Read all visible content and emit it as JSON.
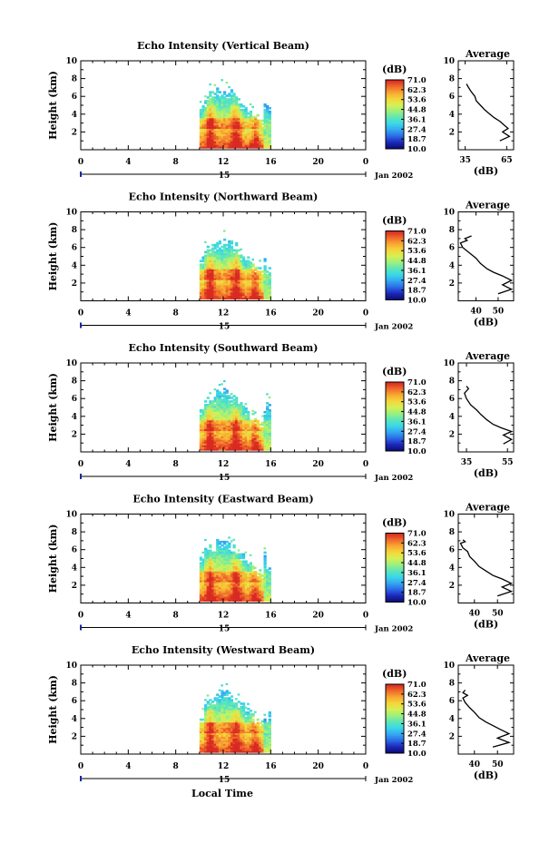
{
  "chart_data": {
    "type": "heatmap",
    "bottom_xlabel": "Local Time",
    "date_label": "Jan 2002",
    "date_tick": "15",
    "time_ticks": [
      0,
      4,
      8,
      12,
      16,
      20,
      0
    ],
    "xlim_hours": [
      0,
      24
    ],
    "height_ticks": [
      2,
      4,
      6,
      8,
      10
    ],
    "ylabel": "Height (km)",
    "ylim_km": [
      0,
      10
    ],
    "colorbar": {
      "unit": "(dB)",
      "labels": [
        "71.0",
        "62.3",
        "53.6",
        "44.8",
        "36.1",
        "27.4",
        "18.7",
        "10.0"
      ],
      "colors": [
        "#0c0e7a",
        "#1f2bbf",
        "#2b6fe8",
        "#35a9f2",
        "#3ad8e8",
        "#5fe6b6",
        "#9cf07c",
        "#d6f055",
        "#f4d63a",
        "#f8a832",
        "#f06a2a",
        "#d82a22"
      ]
    },
    "echo_band": {
      "start_hour": 10.0,
      "end_hour": 15.8,
      "note": "echo present only between ~10 and ~16 LT, tops 5–7 km"
    },
    "panels": [
      {
        "title": "Echo Intensity (Vertical Beam)",
        "profile_title": "Average",
        "profile_xlabel": "(dB)",
        "profile_xlim": [
          30,
          70
        ],
        "profile_xticks": [
          "35",
          "65"
        ],
        "profile_xtick_values": [
          35,
          65
        ],
        "profile": [
          [
            60,
            1.0
          ],
          [
            67,
            1.5
          ],
          [
            62,
            2.0
          ],
          [
            66,
            2.4
          ],
          [
            63,
            2.8
          ],
          [
            60,
            3.2
          ],
          [
            56,
            3.6
          ],
          [
            52,
            4.1
          ],
          [
            49,
            4.5
          ],
          [
            46,
            5.0
          ],
          [
            43,
            5.5
          ],
          [
            42,
            6.0
          ],
          [
            39,
            6.6
          ],
          [
            37,
            7.1
          ],
          [
            36,
            7.4
          ]
        ]
      },
      {
        "title": "Echo Intensity (Northward Beam)",
        "profile_title": "Average",
        "profile_xlabel": "(dB)",
        "profile_xlim": [
          32,
          57
        ],
        "profile_xticks": [
          "40",
          "50"
        ],
        "profile_xtick_values": [
          40,
          50
        ],
        "profile": [
          [
            50,
            0.8
          ],
          [
            56,
            1.3
          ],
          [
            52,
            1.8
          ],
          [
            56,
            2.3
          ],
          [
            52,
            2.8
          ],
          [
            48,
            3.2
          ],
          [
            45,
            3.6
          ],
          [
            42,
            4.2
          ],
          [
            40,
            4.8
          ],
          [
            37,
            5.4
          ],
          [
            34,
            6.0
          ],
          [
            33,
            6.5
          ],
          [
            36,
            6.8
          ],
          [
            35,
            7.0
          ],
          [
            38,
            7.3
          ]
        ]
      },
      {
        "title": "Echo Intensity (Southward Beam)",
        "profile_title": "Average",
        "profile_xlabel": "(dB)",
        "profile_xlim": [
          31,
          58
        ],
        "profile_xticks": [
          "35",
          "55"
        ],
        "profile_xtick_values": [
          35,
          55
        ],
        "profile": [
          [
            53,
            0.9
          ],
          [
            57,
            1.4
          ],
          [
            53,
            1.9
          ],
          [
            57,
            2.3
          ],
          [
            52,
            2.7
          ],
          [
            48,
            3.1
          ],
          [
            45,
            3.6
          ],
          [
            42,
            4.2
          ],
          [
            40,
            4.7
          ],
          [
            37,
            5.3
          ],
          [
            35,
            6.0
          ],
          [
            34,
            6.6
          ],
          [
            36,
            7.1
          ],
          [
            35,
            7.4
          ]
        ]
      },
      {
        "title": "Echo Intensity (Eastward Beam)",
        "profile_title": "Average",
        "profile_xlabel": "(dB)",
        "profile_xlim": [
          33,
          57
        ],
        "profile_xticks": [
          "40",
          "50"
        ],
        "profile_xtick_values": [
          40,
          50
        ],
        "profile": [
          [
            50,
            0.8
          ],
          [
            56,
            1.3
          ],
          [
            52,
            1.8
          ],
          [
            56,
            2.2
          ],
          [
            52,
            2.7
          ],
          [
            48,
            3.1
          ],
          [
            45,
            3.6
          ],
          [
            42,
            4.1
          ],
          [
            40,
            4.7
          ],
          [
            38,
            5.2
          ],
          [
            37,
            5.8
          ],
          [
            35,
            6.2
          ],
          [
            34,
            6.7
          ],
          [
            36,
            6.9
          ],
          [
            35,
            7.1
          ]
        ]
      },
      {
        "title": "Echo Intensity (Westward Beam)",
        "profile_title": "Average",
        "profile_xlabel": "(dB)",
        "profile_xlim": [
          33,
          57
        ],
        "profile_xticks": [
          "40",
          "50"
        ],
        "profile_xtick_values": [
          40,
          50
        ],
        "profile": [
          [
            48,
            0.8
          ],
          [
            55,
            1.3
          ],
          [
            50,
            1.8
          ],
          [
            55,
            2.3
          ],
          [
            51,
            2.8
          ],
          [
            48,
            3.2
          ],
          [
            45,
            3.6
          ],
          [
            42,
            4.1
          ],
          [
            40,
            4.7
          ],
          [
            38,
            5.2
          ],
          [
            36,
            5.8
          ],
          [
            35,
            6.3
          ],
          [
            37,
            6.6
          ],
          [
            35,
            6.9
          ],
          [
            36,
            7.2
          ]
        ]
      }
    ]
  }
}
